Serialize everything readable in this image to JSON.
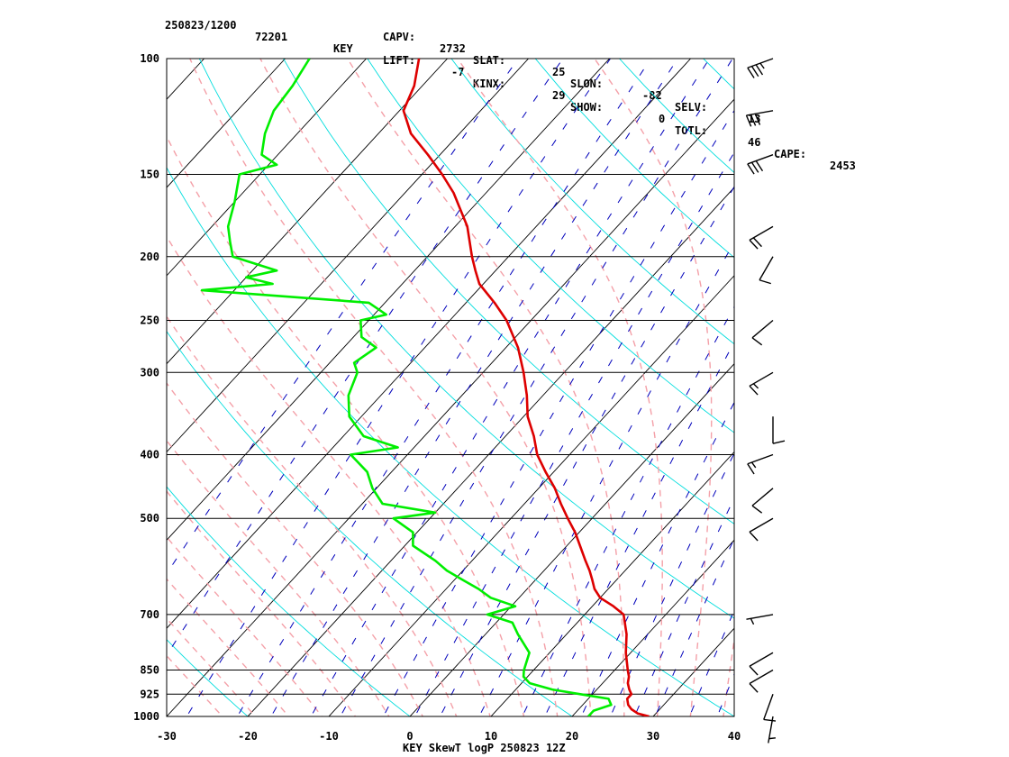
{
  "header": {
    "station_time": "250823/1200",
    "station_id": "72201",
    "station_name": "KEY",
    "indices": [
      {
        "label": "LIFT:",
        "value": "-7"
      },
      {
        "label": "KINX:",
        "value": "29"
      },
      {
        "label": "SHOW:",
        "value": "0"
      },
      {
        "label": "TOTL:",
        "value": "46"
      },
      {
        "label": "CAPE:",
        "value": "2453"
      },
      {
        "label": "CAPV:",
        "value": "2732"
      },
      {
        "label": "SLAT:",
        "value": "25"
      },
      {
        "label": "SLON:",
        "value": "-82"
      },
      {
        "label": "SELV:",
        "value": "13"
      }
    ]
  },
  "footer": {
    "title": "KEY SkewT logP 250823 12Z"
  },
  "colors": {
    "temperature": "#dd0000",
    "dewpoint": "#00ee00",
    "isotherms": "#000000",
    "isobars": "#000000",
    "dry_adiabats": "#00dddd",
    "moist_adiabats": "#f4a0a8",
    "mixing_ratio": "#0000bb",
    "wind_barbs": "#000000"
  },
  "chart_data": {
    "type": "line",
    "diagram": "skew-T log-P",
    "xlim": [
      -30,
      40
    ],
    "ylim": [
      1000,
      100
    ],
    "y_scale": "log",
    "x_ticks": [
      "-30",
      "-20",
      "-10",
      "0",
      "10",
      "20",
      "30",
      "40"
    ],
    "pressure_levels": [
      "100",
      "150",
      "200",
      "250",
      "300",
      "400",
      "500",
      "700",
      "850",
      "925",
      "1000"
    ],
    "series": [
      {
        "key": "temperature",
        "pressure": [
          1000,
          990,
          975,
          960,
          940,
          925,
          910,
          890,
          870,
          850,
          800,
          750,
          700,
          680,
          660,
          640,
          620,
          600,
          580,
          550,
          525,
          500,
          475,
          450,
          425,
          400,
          375,
          350,
          325,
          300,
          275,
          250,
          235,
          220,
          210,
          200,
          180,
          160,
          150,
          140,
          130,
          120,
          110,
          100
        ],
        "values": [
          29.5,
          27.8,
          26.5,
          25.6,
          24.8,
          24.8,
          24.0,
          23.1,
          22.5,
          21.6,
          19.4,
          17.4,
          14.8,
          12.6,
          10.0,
          8.3,
          7.0,
          5.6,
          4.0,
          1.6,
          -0.5,
          -3.0,
          -5.5,
          -8.0,
          -11.0,
          -14.0,
          -16.5,
          -19.5,
          -22.0,
          -25.0,
          -28.5,
          -33.0,
          -36.5,
          -40.5,
          -42.5,
          -44.5,
          -48.5,
          -54.0,
          -57.5,
          -61.5,
          -66.0,
          -69.5,
          -71.0,
          -73.5
        ]
      },
      {
        "key": "dewpoint",
        "pressure": [
          1000,
          980,
          960,
          940,
          925,
          910,
          890,
          870,
          850,
          800,
          750,
          720,
          700,
          680,
          660,
          640,
          620,
          600,
          580,
          550,
          525,
          500,
          490,
          475,
          450,
          425,
          400,
          390,
          375,
          350,
          325,
          300,
          290,
          275,
          265,
          250,
          245,
          235,
          225,
          220,
          215,
          210,
          200,
          190,
          180,
          165,
          150,
          145,
          140,
          130,
          120,
          110,
          100
        ],
        "values": [
          22.0,
          22.0,
          23.5,
          22.5,
          18.5,
          14.5,
          11.0,
          9.5,
          8.8,
          7.5,
          4.0,
          2.0,
          -2.0,
          0.5,
          -3.5,
          -6.0,
          -9.0,
          -12.0,
          -14.5,
          -19.0,
          -20.5,
          -24.5,
          -20.0,
          -27.5,
          -30.5,
          -33.0,
          -37.0,
          -32.0,
          -37.5,
          -41.5,
          -44.0,
          -45.5,
          -47.0,
          -46.0,
          -49.0,
          -51.0,
          -48.5,
          -52.0,
          -74.0,
          -66.0,
          -70.0,
          -67.0,
          -74.0,
          -76.0,
          -78.0,
          -80.0,
          -82.5,
          -79.0,
          -82.0,
          -84.0,
          -85.5,
          -86.0,
          -87.0
        ]
      }
    ],
    "wind_barbs": {
      "pressure": [
        1000,
        925,
        850,
        800,
        700,
        500,
        450,
        400,
        350,
        300,
        250,
        200,
        180,
        140,
        120,
        100
      ],
      "direction_deg": [
        190,
        200,
        240,
        240,
        260,
        240,
        230,
        250,
        180,
        240,
        230,
        210,
        240,
        250,
        260,
        250
      ],
      "speed_kt": [
        5,
        10,
        10,
        10,
        5,
        10,
        10,
        15,
        10,
        15,
        10,
        10,
        20,
        30,
        30,
        35
      ]
    }
  }
}
